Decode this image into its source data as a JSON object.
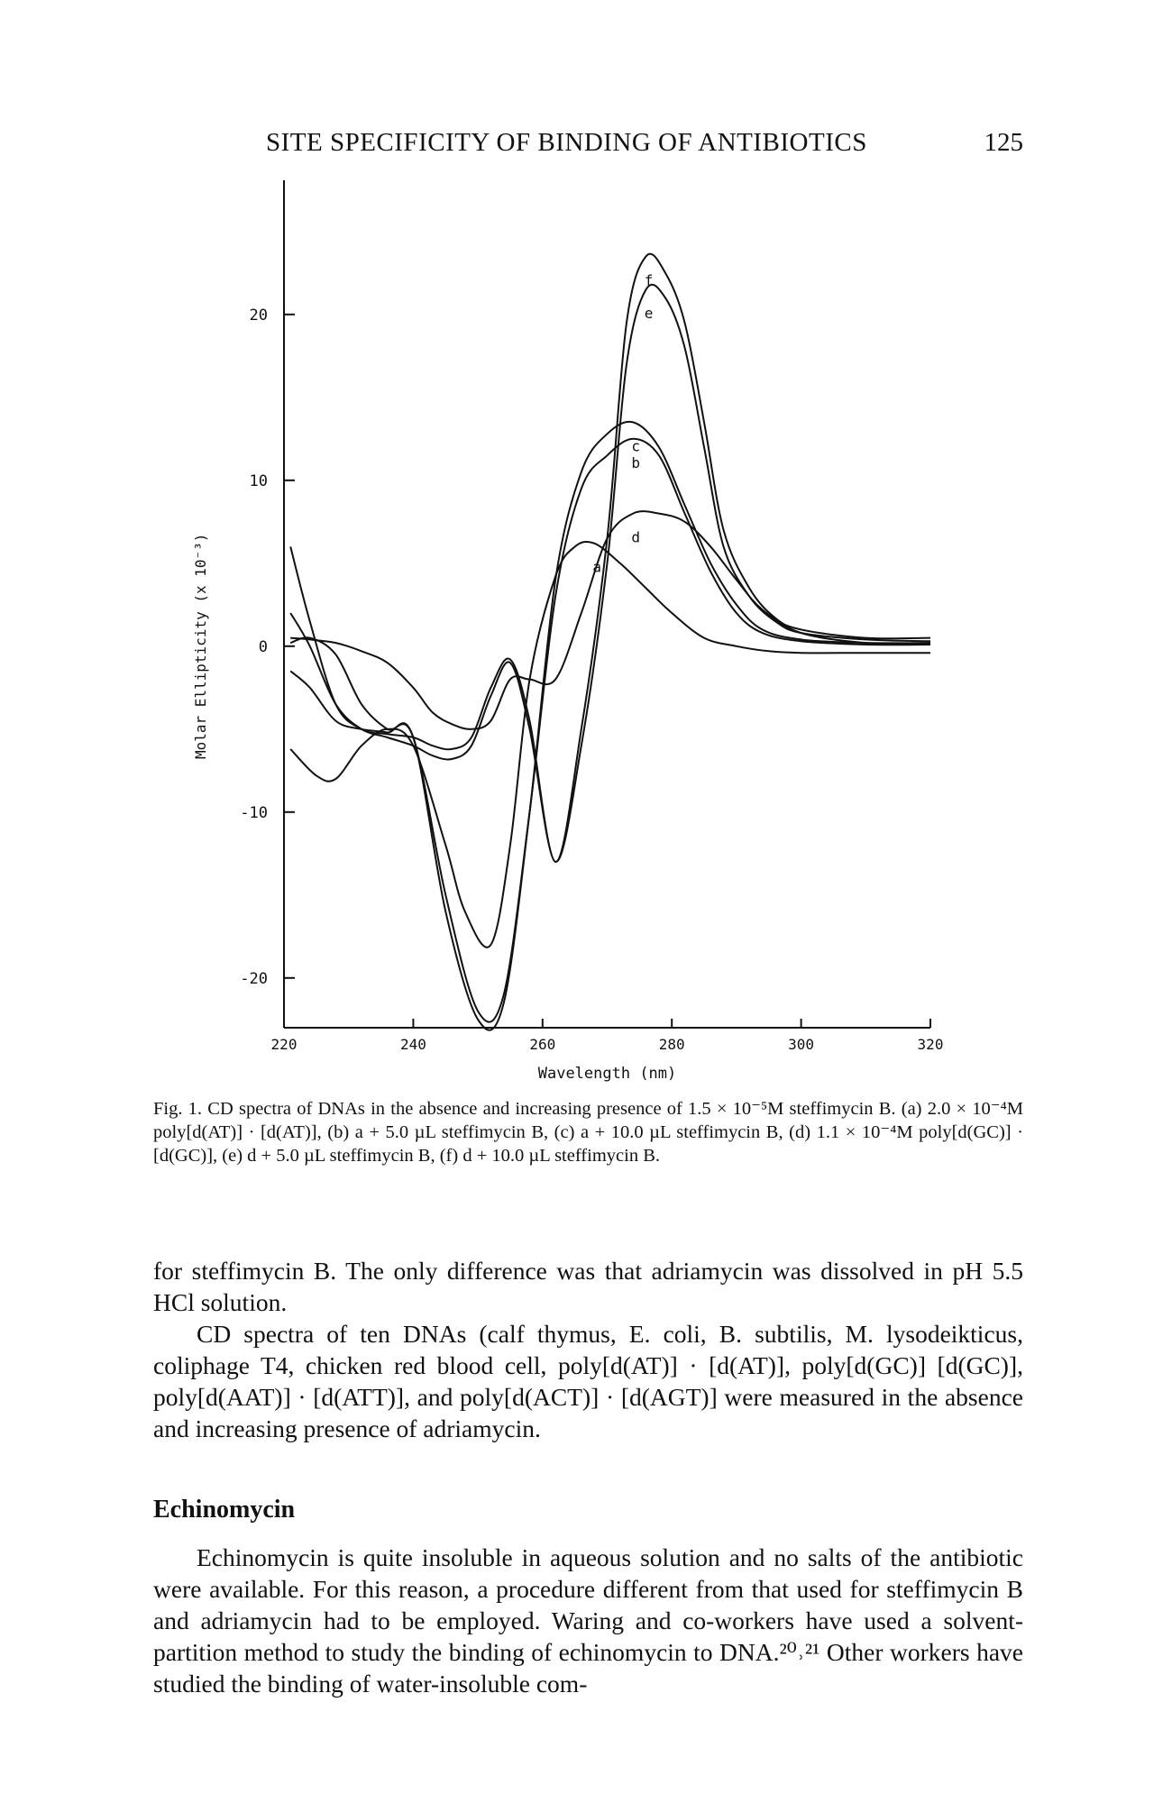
{
  "header": {
    "running_title": "SITE SPECIFICITY OF BINDING OF ANTIBIOTICS",
    "page_number": "125"
  },
  "chart_data": {
    "type": "line",
    "title": "",
    "xlabel": "Wavelength (nm)",
    "ylabel": "Molar Ellipticity (x 10⁻³)",
    "xlim": [
      220,
      320
    ],
    "ylim": [
      -23,
      27
    ],
    "x_ticks": [
      "220",
      "240",
      "260",
      "280",
      "300",
      "320"
    ],
    "y_ticks": [
      "20",
      "10",
      "0",
      "-10",
      "-20"
    ],
    "x_tick_values": [
      220,
      240,
      260,
      280,
      300,
      320
    ],
    "y_tick_values": [
      20,
      10,
      0,
      -10,
      -20
    ],
    "series": [
      {
        "name": "a",
        "x": [
          221,
          225,
          228,
          232,
          236,
          240,
          245,
          248,
          252,
          255,
          258,
          262,
          265,
          268,
          272,
          276,
          280,
          285,
          290,
          295,
          300,
          310,
          320
        ],
        "y": [
          -6.2,
          -7.8,
          -8.0,
          -6.0,
          -5.0,
          -6.0,
          -12.0,
          -16.0,
          -18.0,
          -12.0,
          -2.0,
          4.2,
          6.0,
          6.2,
          5.0,
          3.5,
          2.0,
          0.5,
          0.0,
          -0.3,
          -0.4,
          -0.4,
          -0.4
        ]
      },
      {
        "name": "b",
        "x": [
          221,
          224,
          228,
          232,
          236,
          240,
          245,
          250,
          254,
          258,
          262,
          266,
          270,
          274,
          278,
          282,
          286,
          290,
          294,
          300,
          310,
          320
        ],
        "y": [
          0.2,
          0.5,
          -0.5,
          -3.5,
          -5.0,
          -5.5,
          -15.0,
          -22.0,
          -21.0,
          -10.0,
          3.0,
          9.5,
          11.5,
          12.5,
          11.5,
          8.0,
          4.5,
          2.0,
          0.8,
          0.3,
          0.1,
          0.1
        ]
      },
      {
        "name": "c",
        "x": [
          221,
          224,
          228,
          232,
          236,
          240,
          245,
          250,
          254,
          258,
          262,
          266,
          270,
          274,
          278,
          282,
          286,
          290,
          294,
          300,
          310,
          320
        ],
        "y": [
          -1.5,
          -2.5,
          -4.5,
          -5.0,
          -5.2,
          -5.5,
          -16.0,
          -22.5,
          -21.5,
          -10.0,
          4.0,
          10.5,
          12.8,
          13.5,
          12.0,
          8.5,
          5.0,
          2.5,
          1.0,
          0.4,
          0.2,
          0.2
        ]
      },
      {
        "name": "d",
        "x": [
          221,
          224,
          228,
          232,
          236,
          240,
          243,
          246,
          249,
          252,
          255,
          258,
          262,
          266,
          270,
          274,
          278,
          282,
          286,
          290,
          294,
          300,
          310,
          320
        ],
        "y": [
          0.5,
          0.4,
          0.2,
          -0.3,
          -1.0,
          -2.5,
          -4.0,
          -4.7,
          -5.0,
          -4.5,
          -2.0,
          -2.0,
          -2.0,
          2.0,
          6.5,
          8.0,
          8.0,
          7.5,
          6.0,
          4.0,
          2.2,
          0.8,
          0.2,
          0.1
        ]
      },
      {
        "name": "e",
        "x": [
          221,
          224,
          228,
          232,
          236,
          240,
          243,
          246,
          249,
          252,
          255,
          258,
          262,
          266,
          270,
          273,
          276,
          279,
          282,
          285,
          288,
          292,
          296,
          300,
          310,
          320
        ],
        "y": [
          2.0,
          0.0,
          -3.5,
          -5.0,
          -5.5,
          -6.0,
          -6.6,
          -6.8,
          -6.0,
          -3.0,
          -1.0,
          -5.0,
          -13.0,
          -6.0,
          5.0,
          17.0,
          21.5,
          21.0,
          18.0,
          12.0,
          6.0,
          3.0,
          1.5,
          0.8,
          0.4,
          0.3
        ]
      },
      {
        "name": "f",
        "x": [
          221,
          224,
          228,
          232,
          236,
          240,
          243,
          246,
          249,
          252,
          255,
          258,
          262,
          266,
          270,
          273,
          276,
          279,
          282,
          285,
          288,
          292,
          296,
          300,
          310,
          320
        ],
        "y": [
          6.0,
          1.5,
          -3.5,
          -5.0,
          -5.3,
          -5.5,
          -6.0,
          -6.2,
          -5.5,
          -2.5,
          -0.8,
          -4.5,
          -13.0,
          -5.0,
          6.5,
          19.5,
          23.5,
          22.5,
          19.5,
          13.5,
          7.0,
          3.5,
          1.7,
          1.0,
          0.5,
          0.5
        ]
      }
    ],
    "grid": false,
    "legend": "none"
  },
  "caption": {
    "label": "Fig. 1.",
    "text": "CD spectra of DNAs in the absence and increasing presence of 1.5 × 10⁻⁵M steffimycin B. (a) 2.0 × 10⁻⁴M poly[d(AT)] · [d(AT)], (b) a + 5.0 µL steffimycin B, (c) a + 10.0 µL steffimycin B, (d) 1.1 × 10⁻⁴M poly[d(GC)] · [d(GC)], (e) d + 5.0 µL steffimycin B, (f) d + 10.0 µL steffimycin B."
  },
  "body": {
    "para1": "for steffimycin B. The only difference was that adriamycin was dissolved in pH 5.5 HCl solution.",
    "para2": "CD spectra of ten DNAs (calf thymus, E. coli, B. subtilis, M. lysodeikticus, coliphage T4, chicken red blood cell, poly[d(AT)] · [d(AT)], poly[d(GC)] [d(GC)], poly[d(AAT)] · [d(ATT)], and poly[d(ACT)] · [d(AGT)] were measured in the absence and increasing presence of adriamycin.",
    "section_heading": "Echinomycin",
    "para3": "Echinomycin is quite insoluble in aqueous solution and no salts of the antibiotic were available. For this reason, a procedure different from that used for steffimycin B and adriamycin had to be employed. Waring and co-workers have used a solvent-partition method to study the binding of echinomycin to DNA.²⁰˒²¹ Other workers have studied the binding of water-insoluble com-"
  }
}
